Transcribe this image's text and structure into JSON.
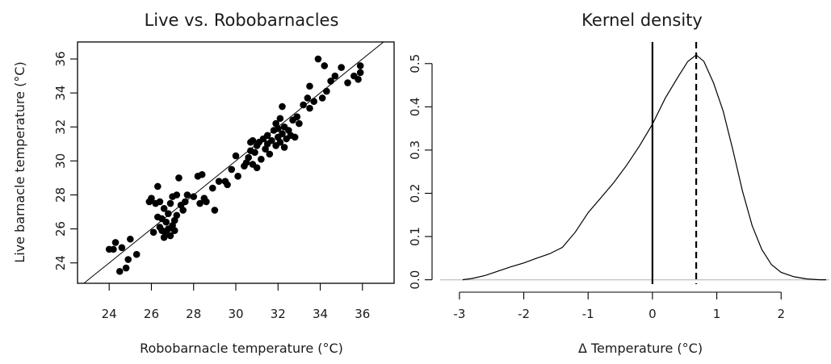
{
  "chart_data": [
    {
      "type": "scatter",
      "title": "Live vs. Robobarnacles",
      "xlabel": "Robobarnacle temperature (°C)",
      "ylabel": "Live barnacle temperature (°C)",
      "xlim": [
        22.5,
        37.5
      ],
      "ylim": [
        22.8,
        37.0
      ],
      "xticks": [
        24,
        26,
        28,
        30,
        32,
        34,
        36
      ],
      "yticks": [
        24,
        26,
        28,
        30,
        32,
        34,
        36
      ],
      "grid": false,
      "reference_line": "y = x",
      "points": [
        [
          24.0,
          24.8
        ],
        [
          24.2,
          24.8
        ],
        [
          24.3,
          25.2
        ],
        [
          24.5,
          23.5
        ],
        [
          24.6,
          24.9
        ],
        [
          24.8,
          23.7
        ],
        [
          24.9,
          24.2
        ],
        [
          25.0,
          25.4
        ],
        [
          25.3,
          24.5
        ],
        [
          25.9,
          27.6
        ],
        [
          26.0,
          27.8
        ],
        [
          26.1,
          25.8
        ],
        [
          26.2,
          27.5
        ],
        [
          26.3,
          26.7
        ],
        [
          26.3,
          28.5
        ],
        [
          26.4,
          27.6
        ],
        [
          26.4,
          26.1
        ],
        [
          26.5,
          25.9
        ],
        [
          26.5,
          26.6
        ],
        [
          26.6,
          25.5
        ],
        [
          26.6,
          27.2
        ],
        [
          26.7,
          26.4
        ],
        [
          26.7,
          25.7
        ],
        [
          26.8,
          26.0
        ],
        [
          26.8,
          26.9
        ],
        [
          26.9,
          27.5
        ],
        [
          26.9,
          25.6
        ],
        [
          27.0,
          26.2
        ],
        [
          27.0,
          27.9
        ],
        [
          27.1,
          26.5
        ],
        [
          27.1,
          25.9
        ],
        [
          27.2,
          26.8
        ],
        [
          27.2,
          28.0
        ],
        [
          27.3,
          29.0
        ],
        [
          27.4,
          27.4
        ],
        [
          27.5,
          27.1
        ],
        [
          27.6,
          27.6
        ],
        [
          27.7,
          28.0
        ],
        [
          28.0,
          27.9
        ],
        [
          28.2,
          29.1
        ],
        [
          28.3,
          27.5
        ],
        [
          28.4,
          29.2
        ],
        [
          28.5,
          27.8
        ],
        [
          28.6,
          27.6
        ],
        [
          28.9,
          28.4
        ],
        [
          29.0,
          27.1
        ],
        [
          29.2,
          28.8
        ],
        [
          29.5,
          28.8
        ],
        [
          29.6,
          28.6
        ],
        [
          29.8,
          29.5
        ],
        [
          30.0,
          30.3
        ],
        [
          30.1,
          29.1
        ],
        [
          30.4,
          29.7
        ],
        [
          30.5,
          29.9
        ],
        [
          30.6,
          30.2
        ],
        [
          30.7,
          30.6
        ],
        [
          30.7,
          31.1
        ],
        [
          30.8,
          29.8
        ],
        [
          30.8,
          31.2
        ],
        [
          30.9,
          30.5
        ],
        [
          31.0,
          29.6
        ],
        [
          31.0,
          30.9
        ],
        [
          31.1,
          31.1
        ],
        [
          31.2,
          30.1
        ],
        [
          31.3,
          31.3
        ],
        [
          31.4,
          30.7
        ],
        [
          31.5,
          31.0
        ],
        [
          31.5,
          31.5
        ],
        [
          31.6,
          30.4
        ],
        [
          31.7,
          31.2
        ],
        [
          31.8,
          31.8
        ],
        [
          31.9,
          30.9
        ],
        [
          31.9,
          32.2
        ],
        [
          32.0,
          31.4
        ],
        [
          32.0,
          31.9
        ],
        [
          32.1,
          31.1
        ],
        [
          32.1,
          32.5
        ],
        [
          32.2,
          31.6
        ],
        [
          32.2,
          33.2
        ],
        [
          32.3,
          30.8
        ],
        [
          32.3,
          32.0
        ],
        [
          32.4,
          31.3
        ],
        [
          32.5,
          31.8
        ],
        [
          32.6,
          31.5
        ],
        [
          32.7,
          32.4
        ],
        [
          32.8,
          31.4
        ],
        [
          32.9,
          32.6
        ],
        [
          33.0,
          32.2
        ],
        [
          33.2,
          33.3
        ],
        [
          33.4,
          33.7
        ],
        [
          33.5,
          34.4
        ],
        [
          33.5,
          33.1
        ],
        [
          33.7,
          33.5
        ],
        [
          33.9,
          36.0
        ],
        [
          34.1,
          33.7
        ],
        [
          34.2,
          35.6
        ],
        [
          34.3,
          34.1
        ],
        [
          34.5,
          34.7
        ],
        [
          34.7,
          35.0
        ],
        [
          35.0,
          35.5
        ],
        [
          35.3,
          34.6
        ],
        [
          35.6,
          35.0
        ],
        [
          35.9,
          35.2
        ],
        [
          35.9,
          35.6
        ],
        [
          35.8,
          34.8
        ]
      ]
    },
    {
      "type": "line",
      "title": "Kernel density",
      "xlabel": "Δ Temperature (°C)",
      "ylabel": "",
      "xlim": [
        -3.3,
        2.75
      ],
      "ylim": [
        -0.01,
        0.55
      ],
      "xticks": [
        -3,
        -2,
        -1,
        0,
        1,
        2
      ],
      "yticks": [
        0.0,
        0.1,
        0.2,
        0.3,
        0.4,
        0.5
      ],
      "ytick_labels": [
        "0.0",
        "0.1",
        "0.2",
        "0.3",
        "0.4",
        "0.5"
      ],
      "grid": false,
      "vlines": [
        {
          "x": 0,
          "style": "solid"
        },
        {
          "x": 0.68,
          "style": "dashed"
        }
      ],
      "baseline": {
        "y": 0,
        "color": "#c8c8c8"
      },
      "x": [
        -2.95,
        -2.8,
        -2.6,
        -2.4,
        -2.2,
        -2.0,
        -1.8,
        -1.6,
        -1.4,
        -1.2,
        -1.0,
        -0.8,
        -0.6,
        -0.4,
        -0.2,
        0.0,
        0.2,
        0.4,
        0.55,
        0.68,
        0.8,
        0.95,
        1.1,
        1.25,
        1.4,
        1.55,
        1.7,
        1.85,
        2.0,
        2.2,
        2.4,
        2.6,
        2.7
      ],
      "y": [
        0.0,
        0.003,
        0.01,
        0.02,
        0.03,
        0.039,
        0.05,
        0.06,
        0.075,
        0.11,
        0.155,
        0.19,
        0.225,
        0.265,
        0.31,
        0.36,
        0.42,
        0.47,
        0.505,
        0.52,
        0.505,
        0.455,
        0.39,
        0.3,
        0.205,
        0.125,
        0.07,
        0.035,
        0.017,
        0.007,
        0.002,
        0.0,
        0.0
      ]
    }
  ]
}
